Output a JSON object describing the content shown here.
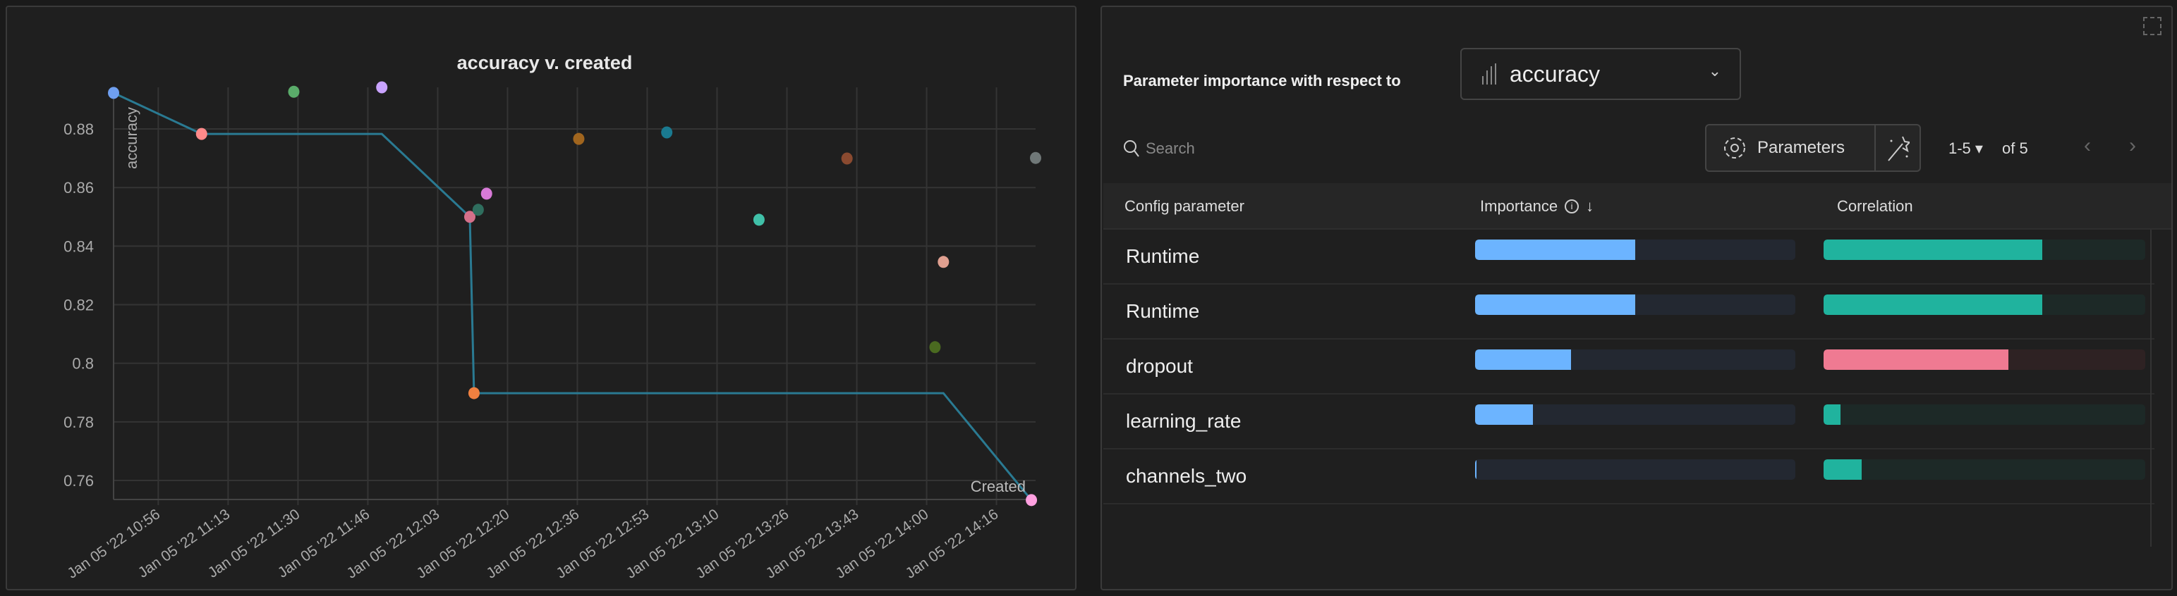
{
  "chart_data": {
    "type": "scatter",
    "title": "accuracy v. created",
    "xlabel": "Created",
    "ylabel": "accuracy",
    "xlim": [
      "10:46",
      "14:26"
    ],
    "ylim": [
      0.7535,
      0.8942
    ],
    "grid": true,
    "x_ticks": [
      {
        "value": "10:56:40",
        "label": "Jan 05 '22 10:56"
      },
      {
        "value": "11:13:20",
        "label": "Jan 05 '22 11:13"
      },
      {
        "value": "11:30:00",
        "label": "Jan 05 '22 11:30"
      },
      {
        "value": "11:46:40",
        "label": "Jan 05 '22 11:46"
      },
      {
        "value": "12:03:20",
        "label": "Jan 05 '22 12:03"
      },
      {
        "value": "12:20:00",
        "label": "Jan 05 '22 12:20"
      },
      {
        "value": "12:36:40",
        "label": "Jan 05 '22 12:36"
      },
      {
        "value": "12:53:20",
        "label": "Jan 05 '22 12:53"
      },
      {
        "value": "13:10:00",
        "label": "Jan 05 '22 13:10"
      },
      {
        "value": "13:26:40",
        "label": "Jan 05 '22 13:26"
      },
      {
        "value": "13:43:20",
        "label": "Jan 05 '22 13:43"
      },
      {
        "value": "14:00:00",
        "label": "Jan 05 '22 14:00"
      },
      {
        "value": "14:16:40",
        "label": "Jan 05 '22 14:16"
      }
    ],
    "y_ticks": [
      {
        "value": 0.76,
        "label": "0.76"
      },
      {
        "value": 0.78,
        "label": "0.78"
      },
      {
        "value": 0.8,
        "label": "0.8"
      },
      {
        "value": 0.82,
        "label": "0.82"
      },
      {
        "value": 0.84,
        "label": "0.84"
      },
      {
        "value": 0.86,
        "label": "0.86"
      },
      {
        "value": 0.88,
        "label": "0.88"
      }
    ],
    "points": [
      {
        "x": "10:46",
        "y": 0.8923,
        "color": "#6f9ff0"
      },
      {
        "x": "11:07",
        "y": 0.8783,
        "color": "#ff8a8a"
      },
      {
        "x": "11:29",
        "y": 0.8927,
        "color": "#5aac6a"
      },
      {
        "x": "11:50",
        "y": 0.8942,
        "color": "#c9a3ff"
      },
      {
        "x": "12:11",
        "y": 0.85,
        "color": "#d4708a"
      },
      {
        "x": "12:13",
        "y": 0.8524,
        "color": "#2f6e5e"
      },
      {
        "x": "12:15",
        "y": 0.8579,
        "color": "#d87ad8"
      },
      {
        "x": "12:12",
        "y": 0.7898,
        "color": "#f08040"
      },
      {
        "x": "12:37",
        "y": 0.8766,
        "color": "#a0651e"
      },
      {
        "x": "12:58",
        "y": 0.8788,
        "color": "#1a7a90"
      },
      {
        "x": "13:20",
        "y": 0.849,
        "color": "#40c0a8"
      },
      {
        "x": "13:41",
        "y": 0.8699,
        "color": "#8a4a30"
      },
      {
        "x": "14:04",
        "y": 0.8346,
        "color": "#e0a090"
      },
      {
        "x": "14:02",
        "y": 0.8055,
        "color": "#4a6a20"
      },
      {
        "x": "14:26",
        "y": 0.8701,
        "color": "#707878"
      },
      {
        "x": "14:25",
        "y": 0.7533,
        "color": "#ffa0e0"
      }
    ],
    "line": {
      "color": "#2a7a92",
      "points": [
        {
          "x": "10:46",
          "y": 0.8923
        },
        {
          "x": "11:07",
          "y": 0.8783
        },
        {
          "x": "11:50",
          "y": 0.8783
        },
        {
          "x": "12:11",
          "y": 0.85
        },
        {
          "x": "12:12",
          "y": 0.7898
        },
        {
          "x": "14:04",
          "y": 0.7898
        },
        {
          "x": "14:25",
          "y": 0.7533
        }
      ]
    }
  },
  "importance": {
    "title": "Parameter importance with respect to",
    "metric": "accuracy",
    "search_placeholder": "Search",
    "parameters_label": "Parameters",
    "page_range": "1-5",
    "page_total": "of 5",
    "columns": {
      "param": "Config parameter",
      "importance": "Importance",
      "correlation": "Correlation"
    },
    "colors": {
      "importance": "#6cb4ff",
      "positive": "#20b39e",
      "negative": "#ef7a92"
    },
    "rows": [
      {
        "name": "Runtime",
        "importance": 0.5,
        "correlation": 0.68
      },
      {
        "name": "Runtime",
        "importance": 0.5,
        "correlation": 0.68
      },
      {
        "name": "dropout",
        "importance": 0.3,
        "correlation": -0.575
      },
      {
        "name": "learning_rate",
        "importance": 0.18,
        "correlation": 0.053
      },
      {
        "name": "channels_two",
        "importance": 0.005,
        "correlation": 0.118
      }
    ]
  }
}
